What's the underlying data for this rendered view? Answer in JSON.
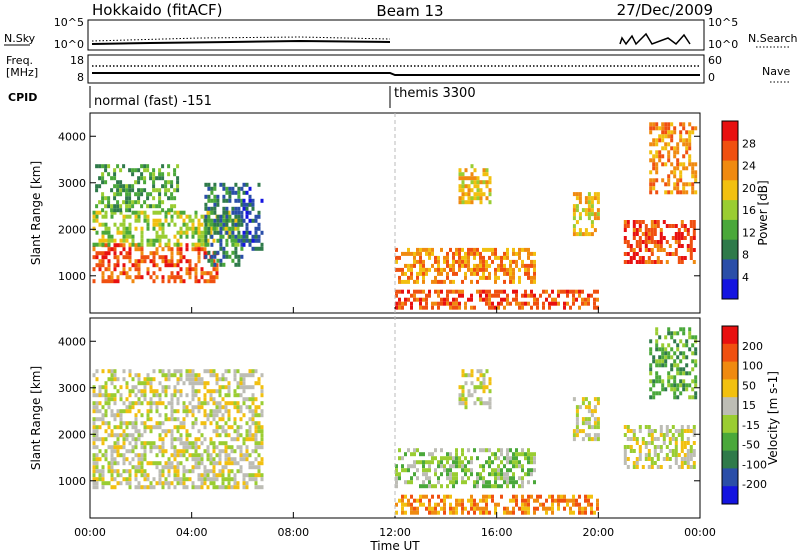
{
  "header": {
    "station": "Hokkaido (fitACF)",
    "beam": "Beam 13",
    "date": "27/Dec/2009"
  },
  "summary_panels": {
    "nsky_label": "N.Sky",
    "nsky_ticks": [
      "10^5",
      "10^0"
    ],
    "nsearch_label": "N.Search",
    "nsearch_ticks": [
      "10^5",
      "10^0"
    ],
    "freq_label": [
      "Freq.",
      "[MHz]"
    ],
    "freq_ticks": [
      "18",
      "8"
    ],
    "nave_label": "Nave",
    "nave_ticks": [
      "60",
      "0"
    ],
    "cpid_label": "CPID",
    "cpid_modes": [
      {
        "name": "normal (fast) -151",
        "start_hour": 0
      },
      {
        "name": "themis 3300",
        "start_hour": 12
      }
    ]
  },
  "colors": {
    "power_scale": [
      "#1414e0",
      "#2a4ea8",
      "#2f7a4a",
      "#4aa83a",
      "#9acd32",
      "#f2c010",
      "#f08a10",
      "#f05010",
      "#e81010"
    ],
    "velocity_scale": [
      "#1414e0",
      "#2a4ea8",
      "#2f7a4a",
      "#4aa83a",
      "#9acd32",
      "#bdbdb5",
      "#f2c010",
      "#f08a10",
      "#f05010",
      "#e81010"
    ],
    "ground_scatter": "#bdbdb5"
  },
  "chart_data": [
    {
      "type": "heatmap",
      "panel": "power",
      "ylabel": "Slant Range [km]",
      "yticks": [
        "4000",
        "3000",
        "2000",
        "1000"
      ],
      "ylim": [
        200,
        4500
      ],
      "xlim": [
        0,
        24
      ],
      "colorbar": {
        "label": "Power [dB]",
        "ticks": [
          "28",
          "24",
          "20",
          "16",
          "12",
          "8",
          "4"
        ],
        "range": [
          0,
          32
        ]
      },
      "regions": [
        {
          "t0": 0.1,
          "t1": 5.0,
          "r0": 900,
          "r1": 1700,
          "level": 7
        },
        {
          "t0": 0.1,
          "t1": 5.8,
          "r0": 1700,
          "r1": 2400,
          "level": 4
        },
        {
          "t0": 0.2,
          "t1": 3.5,
          "r0": 2400,
          "r1": 3400,
          "level": 3
        },
        {
          "t0": 4.5,
          "t1": 6.0,
          "r0": 1200,
          "r1": 3000,
          "level": 2
        },
        {
          "t0": 6.0,
          "t1": 6.8,
          "r0": 1600,
          "r1": 3000,
          "level": 1
        },
        {
          "t0": 12.0,
          "t1": 17.5,
          "r0": 900,
          "r1": 1600,
          "level": 6
        },
        {
          "t0": 12.0,
          "t1": 20.0,
          "r0": 300,
          "r1": 700,
          "level": 7
        },
        {
          "t0": 14.5,
          "t1": 15.7,
          "r0": 2600,
          "r1": 3400,
          "level": 5
        },
        {
          "t0": 19.0,
          "t1": 20.0,
          "r0": 1900,
          "r1": 2800,
          "level": 5
        },
        {
          "t0": 21.0,
          "t1": 23.8,
          "r0": 1300,
          "r1": 2200,
          "level": 7
        },
        {
          "t0": 22.0,
          "t1": 23.8,
          "r0": 2800,
          "r1": 4300,
          "level": 6
        }
      ]
    },
    {
      "type": "heatmap",
      "panel": "velocity",
      "ylabel": "Slant Range [km]",
      "xlabel": "Time UT",
      "yticks": [
        "4000",
        "3000",
        "2000",
        "1000"
      ],
      "ylim": [
        200,
        4500
      ],
      "xlim": [
        0,
        24
      ],
      "xticks": [
        "00:00",
        "04:00",
        "08:00",
        "12:00",
        "16:00",
        "20:00",
        "00:00"
      ],
      "colorbar": {
        "label": "Velocity [m s-1]",
        "ticks": [
          "200",
          "100",
          "50",
          "15",
          "-15",
          "-50",
          "-100",
          "-200"
        ],
        "range": [
          -250,
          250
        ]
      },
      "regions": [
        {
          "t0": 0.1,
          "t1": 6.8,
          "r0": 900,
          "r1": 3400,
          "level": 5
        },
        {
          "t0": 12.0,
          "t1": 17.5,
          "r0": 900,
          "r1": 1700,
          "level": 4
        },
        {
          "t0": 12.0,
          "t1": 20.0,
          "r0": 300,
          "r1": 700,
          "level": 7
        },
        {
          "t0": 14.5,
          "t1": 15.7,
          "r0": 2600,
          "r1": 3400,
          "level": 5
        },
        {
          "t0": 19.0,
          "t1": 20.0,
          "r0": 1900,
          "r1": 2800,
          "level": 5
        },
        {
          "t0": 21.0,
          "t1": 23.8,
          "r0": 1300,
          "r1": 2200,
          "level": 5
        },
        {
          "t0": 22.0,
          "t1": 23.8,
          "r0": 2800,
          "r1": 4300,
          "level": 3
        }
      ]
    }
  ]
}
